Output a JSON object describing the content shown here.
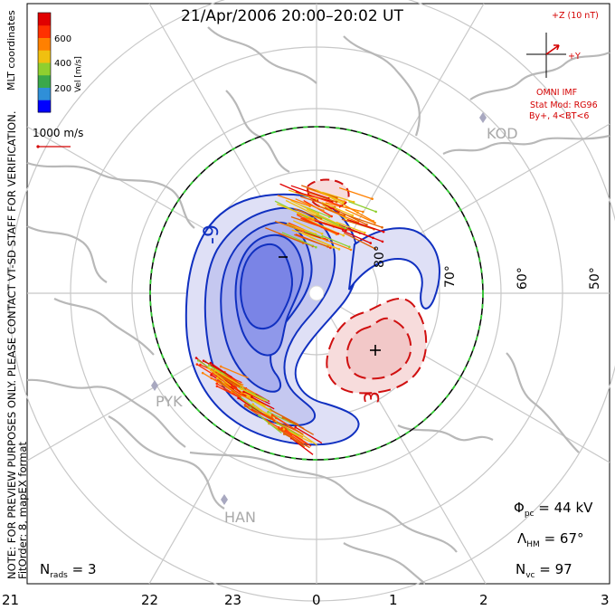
{
  "header": {
    "title": "21/Apr/2006 20:00–20:02 UT"
  },
  "scale_bar": {
    "label": "1000 m/s"
  },
  "colorbar": {
    "label": "Vel [m/s]",
    "ticks": [
      "600",
      "400",
      "200"
    ],
    "colors": [
      "#0000ff",
      "#2f8fd8",
      "#3aa84a",
      "#8fcf2f",
      "#f0c010",
      "#ff8000",
      "#ff3000",
      "#e00000"
    ]
  },
  "side_note": {
    "line1": "NOTE: FOR PREVIEW PURPOSES ONLY. PLEASE CONTACT VT-SD STAFF FOR VERIFICATION.",
    "line2": "FitOrder: 8, mapEX format",
    "coords": "MLT coordinates"
  },
  "imf": {
    "z_label": "+Z (10 nT)",
    "y_label": "+Y",
    "source": "OMNI IMF",
    "model": "Stat Mod: RG96",
    "condition": "By+, 4<BT<6"
  },
  "stations": [
    "KOD",
    "PYK",
    "HAN"
  ],
  "latitude_labels": [
    "80°",
    "70°",
    "60°",
    "50°"
  ],
  "mlt_labels": [
    "21",
    "22",
    "23",
    "0",
    "1",
    "2",
    "3"
  ],
  "contour_labels": {
    "negative": "-9",
    "positive": "3",
    "min_marker": "−",
    "max_marker": "+"
  },
  "stats": {
    "phi_pc": "Φpc = 44 kV",
    "lambda_hm": "ΛHM = 67°",
    "n_vc": "Nvc = 97",
    "n_rads": "Nrads = 3"
  },
  "colors": {
    "negative_contour": "#1030c0",
    "positive_contour": "#d01010",
    "grid": "#c8c8c8",
    "land": "#b8b8b8",
    "station": "#a8a8c0",
    "hmb_green": "#33cc33"
  }
}
